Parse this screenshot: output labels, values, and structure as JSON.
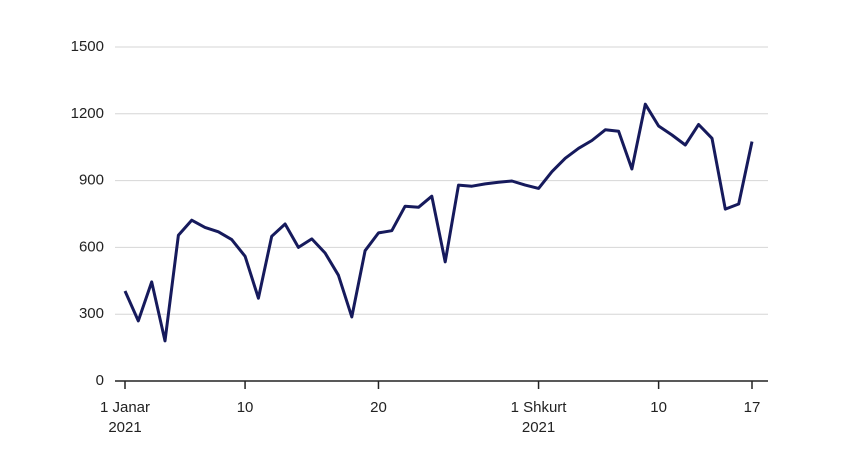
{
  "chart_data": {
    "type": "line",
    "categories": [
      "1 Janar 2021",
      null,
      null,
      null,
      null,
      null,
      null,
      null,
      null,
      "10",
      null,
      null,
      null,
      null,
      null,
      null,
      null,
      null,
      null,
      "20",
      null,
      null,
      null,
      null,
      null,
      null,
      null,
      null,
      null,
      null,
      null,
      "1 Shkurt 2021",
      null,
      null,
      null,
      null,
      null,
      null,
      null,
      null,
      "10",
      null,
      null,
      null,
      null,
      null,
      null,
      "17"
    ],
    "series": [
      {
        "color": "#161a5c",
        "values": [
          404,
          270,
          445,
          180,
          655,
          722,
          690,
          670,
          635,
          560,
          372,
          650,
          705,
          600,
          638,
          575,
          475,
          288,
          585,
          665,
          675,
          785,
          780,
          830,
          535,
          880,
          875,
          885,
          893,
          898,
          880,
          865,
          940,
          1000,
          1045,
          1080,
          1128,
          1122,
          952,
          1243,
          1145,
          1105,
          1060,
          1152,
          1090,
          772,
          795,
          1075
        ]
      }
    ],
    "ylim": [
      0,
      1500
    ],
    "yticks": [
      0,
      300,
      600,
      900,
      1200,
      1500
    ],
    "grid": true
  }
}
